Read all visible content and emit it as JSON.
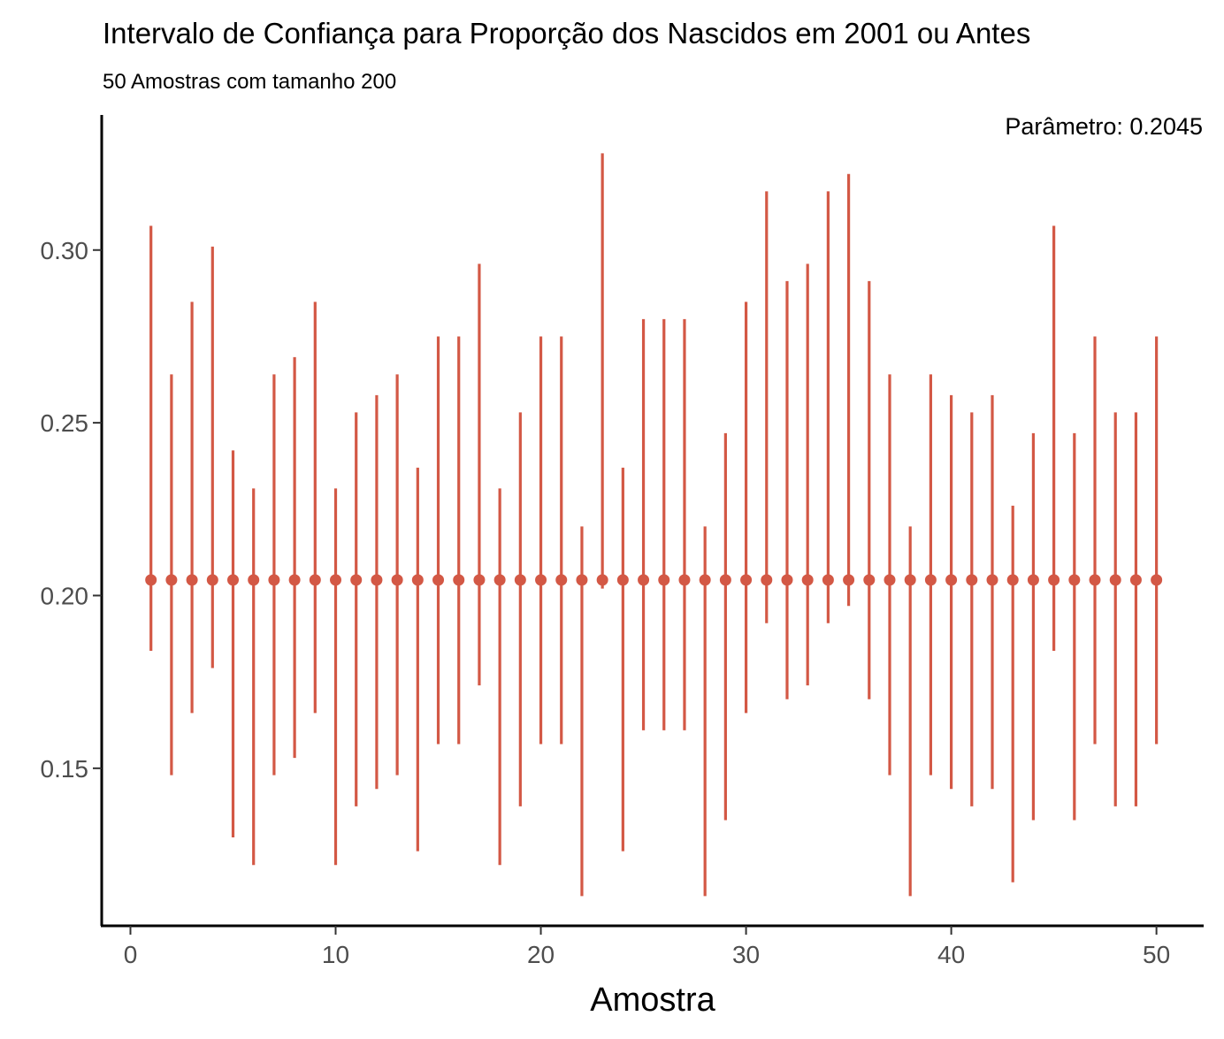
{
  "chart_data": {
    "type": "errorbar",
    "title": "Intervalo de Confiança para Proporção dos Nascidos em 2001 ou Antes",
    "subtitle": "50 Amostras com tamanho 200",
    "annotation": "Parâmetro: 0.2045",
    "parameter": 0.2045,
    "xlabel": "Amostra",
    "ylabel": "",
    "xlim": [
      -1.4,
      52.3
    ],
    "ylim": [
      0.1044,
      0.3391
    ],
    "x_ticks": [
      0,
      10,
      20,
      30,
      40,
      50
    ],
    "y_ticks": [
      0.15,
      0.2,
      0.25,
      0.3
    ],
    "x_tick_labels": [
      "0",
      "10",
      "20",
      "30",
      "40",
      "50"
    ],
    "y_tick_labels": [
      "0.15",
      "0.20",
      "0.25",
      "0.30"
    ],
    "color": "#D35845",
    "grid": false,
    "x": [
      1,
      2,
      3,
      4,
      5,
      6,
      7,
      8,
      9,
      10,
      11,
      12,
      13,
      14,
      15,
      16,
      17,
      18,
      19,
      20,
      21,
      22,
      23,
      24,
      25,
      26,
      27,
      28,
      29,
      30,
      31,
      32,
      33,
      34,
      35,
      36,
      37,
      38,
      39,
      40,
      41,
      42,
      43,
      44,
      45,
      46,
      47,
      48,
      49,
      50
    ],
    "lower": [
      0.184,
      0.148,
      0.166,
      0.179,
      0.13,
      0.122,
      0.148,
      0.153,
      0.166,
      0.122,
      0.139,
      0.144,
      0.148,
      0.126,
      0.157,
      0.157,
      0.174,
      0.122,
      0.139,
      0.157,
      0.157,
      0.113,
      0.202,
      0.126,
      0.161,
      0.161,
      0.161,
      0.113,
      0.135,
      0.166,
      0.192,
      0.17,
      0.174,
      0.192,
      0.197,
      0.17,
      0.148,
      0.113,
      0.148,
      0.144,
      0.139,
      0.144,
      0.117,
      0.135,
      0.184,
      0.135,
      0.157,
      0.139,
      0.139,
      0.157
    ],
    "upper": [
      0.307,
      0.264,
      0.285,
      0.301,
      0.242,
      0.231,
      0.264,
      0.269,
      0.285,
      0.231,
      0.253,
      0.258,
      0.264,
      0.237,
      0.275,
      0.275,
      0.296,
      0.231,
      0.253,
      0.275,
      0.275,
      0.22,
      0.328,
      0.237,
      0.28,
      0.28,
      0.28,
      0.22,
      0.247,
      0.285,
      0.317,
      0.291,
      0.296,
      0.317,
      0.322,
      0.291,
      0.264,
      0.22,
      0.264,
      0.258,
      0.253,
      0.258,
      0.226,
      0.247,
      0.307,
      0.247,
      0.275,
      0.253,
      0.253,
      0.275
    ]
  }
}
